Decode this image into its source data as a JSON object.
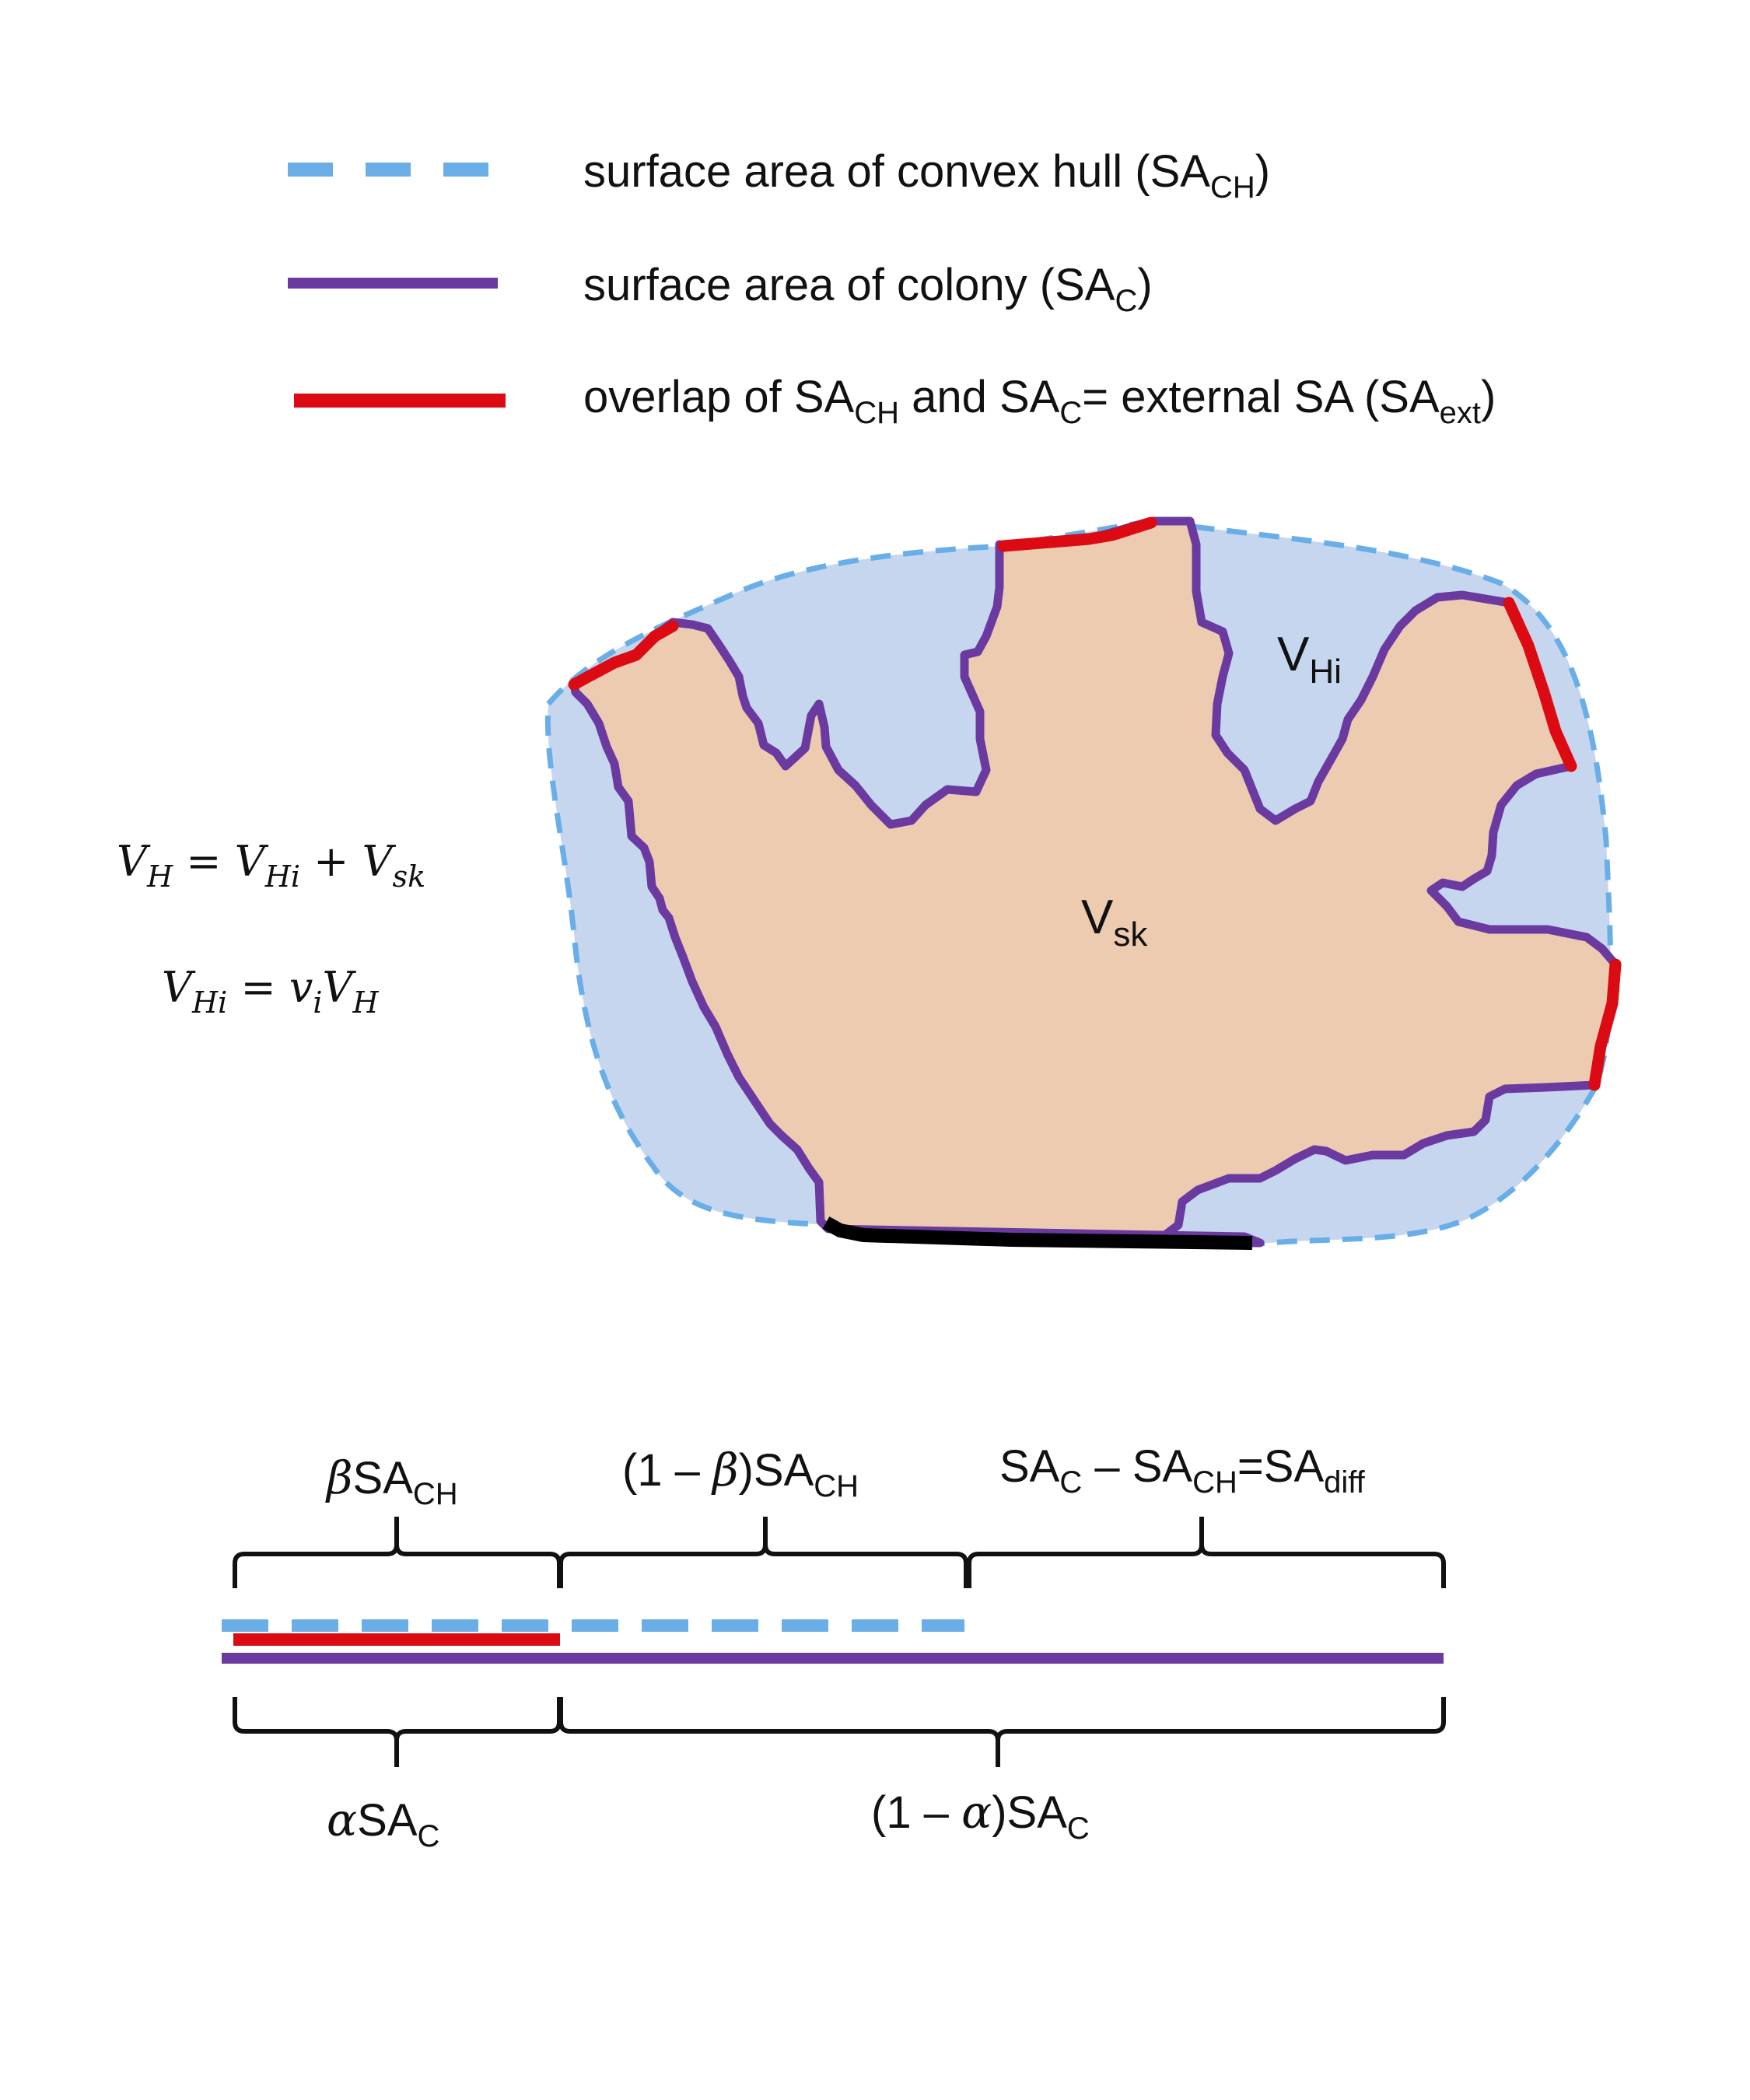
{
  "colors": {
    "convex_hull": "#6aaee8",
    "colony": "#6a3aa0",
    "overlap": "#dc0a12",
    "hull_fill": "#c5d6ee",
    "colony_fill": "#edcbb0",
    "base": "#000000"
  },
  "legend": {
    "convex_hull": {
      "main": "surface area of convex hull (SA",
      "sub": "CH",
      "tail": ")"
    },
    "colony": {
      "main": "surface area of colony (SA",
      "sub": "C",
      "tail": ")"
    },
    "overlap": {
      "p1": "overlap of SA",
      "s1": "CH",
      "p2": " and SA",
      "s2": "C",
      "p3": "= external SA (SA",
      "s3": "ext",
      "p4": ")"
    }
  },
  "equations": {
    "eq1": {
      "lhs": "V",
      "lhs_sub": "H",
      "op1": " = ",
      "a": "V",
      "a_sub": "Hi",
      "op2": " + ",
      "b": "V",
      "b_sub": "sk"
    },
    "eq2": {
      "lhs": "V",
      "lhs_sub": "Hi",
      "op1": " = ",
      "a": "v",
      "a_sub": "i",
      "b": "V",
      "b_sub": "H"
    }
  },
  "regions": {
    "vhi": {
      "main": "V",
      "sub": "Hi"
    },
    "vsk": {
      "main": "V",
      "sub": "sk"
    }
  },
  "bar_labels": {
    "beta_ch": {
      "greek": "β",
      "main": "SA",
      "sub": "CH"
    },
    "one_minus_beta": {
      "pre": "(1 – ",
      "greek": "β",
      "post": ")SA",
      "sub": "CH"
    },
    "diff": {
      "p1": "SA",
      "s1": "C",
      "p2": " – SA",
      "s2": "CH",
      "p3": "=SA",
      "s3": "diff"
    },
    "alpha_c": {
      "greek": "α",
      "main": "SA",
      "sub": "C"
    },
    "one_minus_alpha": {
      "pre": "(1 – ",
      "greek": "α",
      "post": ")SA",
      "sub": "C"
    }
  }
}
